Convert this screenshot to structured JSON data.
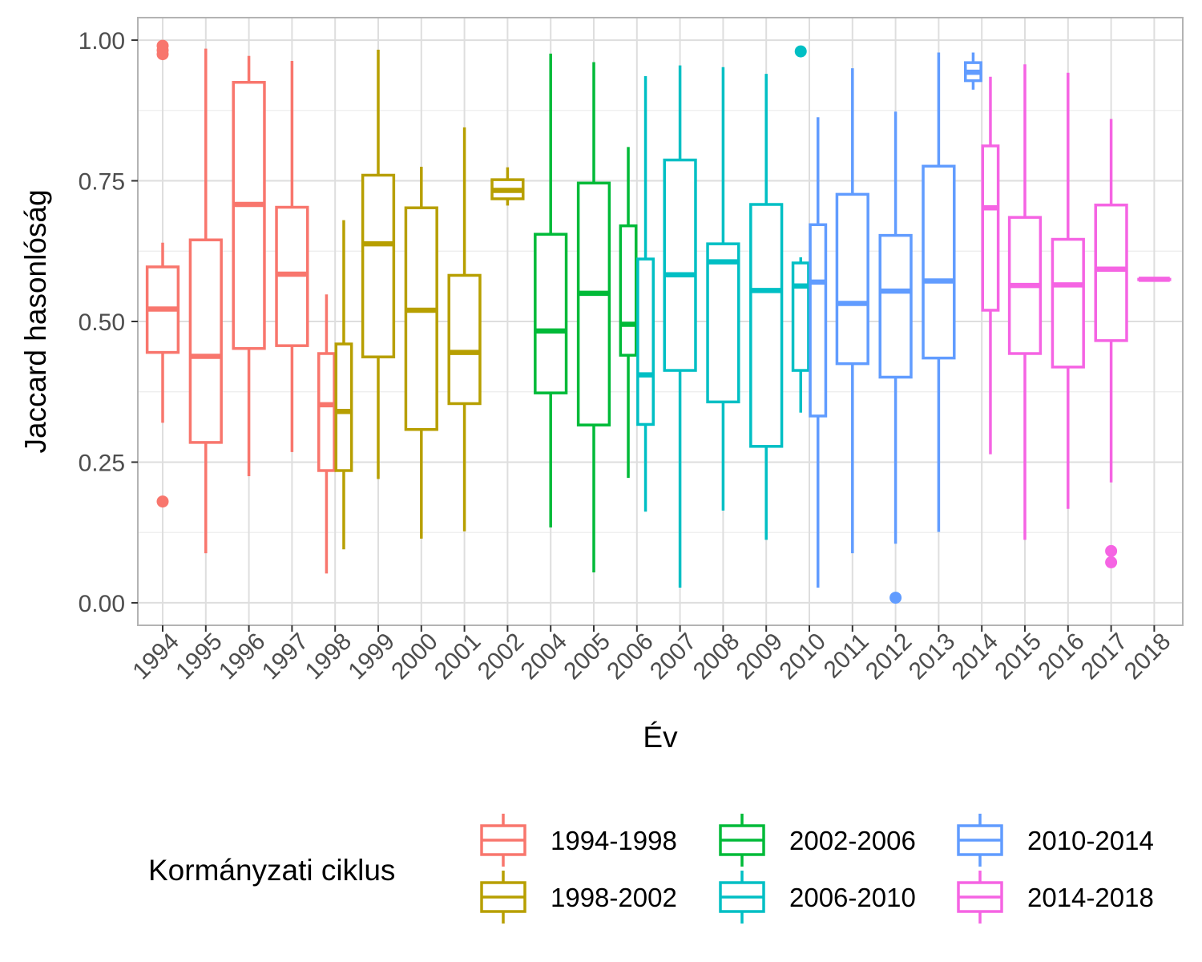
{
  "chart_data": {
    "type": "boxplot",
    "xlabel": "Év",
    "ylabel": "Jaccard hasonlóság",
    "ylim": [
      -0.04,
      1.04
    ],
    "yticks": [
      "0.00",
      "0.25",
      "0.50",
      "0.75",
      "1.00"
    ],
    "ytick_values": [
      0,
      0.25,
      0.5,
      0.75,
      1.0
    ],
    "grid": true,
    "legend": {
      "title": "Kormányzati ciklus",
      "placement": "bottom",
      "entries": [
        "1994-1998",
        "1998-2002",
        "2002-2006",
        "2006-2010",
        "2010-2014",
        "2014-2018"
      ]
    },
    "cycle_colors": {
      "1994-1998": "#F8766D",
      "1998-2002": "#B79F00",
      "2002-2006": "#00BA38",
      "2006-2010": "#00BFC4",
      "2010-2014": "#619CFF",
      "2014-2018": "#F564E3"
    },
    "categories": [
      "1994",
      "1995",
      "1996",
      "1997",
      "1998",
      "1999",
      "2000",
      "2001",
      "2002",
      "2004",
      "2005",
      "2006",
      "2007",
      "2008",
      "2009",
      "2010",
      "2011",
      "2012",
      "2013",
      "2014",
      "2015",
      "2016",
      "2017",
      "2018"
    ],
    "boxes": [
      {
        "year": "1994",
        "cycle": "1994-1998",
        "pos": 0,
        "width": 0.72,
        "min": 0.32,
        "q1": 0.445,
        "median": 0.522,
        "q3": 0.597,
        "max": 0.64,
        "outliers": [
          0.18,
          0.975,
          0.982,
          0.99
        ]
      },
      {
        "year": "1995",
        "cycle": "1994-1998",
        "pos": 1,
        "width": 0.72,
        "min": 0.088,
        "q1": 0.285,
        "median": 0.438,
        "q3": 0.645,
        "max": 0.985,
        "outliers": []
      },
      {
        "year": "1996",
        "cycle": "1994-1998",
        "pos": 2,
        "width": 0.72,
        "min": 0.225,
        "q1": 0.452,
        "median": 0.708,
        "q3": 0.925,
        "max": 0.972,
        "outliers": []
      },
      {
        "year": "1997",
        "cycle": "1994-1998",
        "pos": 3,
        "width": 0.72,
        "min": 0.268,
        "q1": 0.457,
        "median": 0.584,
        "q3": 0.703,
        "max": 0.963,
        "outliers": []
      },
      {
        "year": "1998",
        "cycle": "1994-1998",
        "pos": 3.8,
        "width": 0.36,
        "min": 0.052,
        "q1": 0.235,
        "median": 0.352,
        "q3": 0.443,
        "max": 0.548,
        "outliers": []
      },
      {
        "year": "1998",
        "cycle": "1998-2002",
        "pos": 4.2,
        "width": 0.36,
        "min": 0.095,
        "q1": 0.235,
        "median": 0.34,
        "q3": 0.46,
        "max": 0.68,
        "outliers": []
      },
      {
        "year": "1999",
        "cycle": "1998-2002",
        "pos": 5,
        "width": 0.72,
        "min": 0.22,
        "q1": 0.437,
        "median": 0.638,
        "q3": 0.76,
        "max": 0.983,
        "outliers": []
      },
      {
        "year": "2000",
        "cycle": "1998-2002",
        "pos": 6,
        "width": 0.72,
        "min": 0.114,
        "q1": 0.308,
        "median": 0.52,
        "q3": 0.702,
        "max": 0.775,
        "outliers": []
      },
      {
        "year": "2001",
        "cycle": "1998-2002",
        "pos": 7,
        "width": 0.72,
        "min": 0.127,
        "q1": 0.354,
        "median": 0.445,
        "q3": 0.582,
        "max": 0.845,
        "outliers": []
      },
      {
        "year": "2002",
        "cycle": "1998-2002",
        "pos": 8,
        "width": 0.72,
        "min": 0.706,
        "q1": 0.718,
        "median": 0.733,
        "q3": 0.752,
        "max": 0.774,
        "outliers": []
      },
      {
        "year": "2004",
        "cycle": "2002-2006",
        "pos": 9,
        "width": 0.72,
        "min": 0.134,
        "q1": 0.373,
        "median": 0.483,
        "q3": 0.655,
        "max": 0.976,
        "outliers": []
      },
      {
        "year": "2005",
        "cycle": "2002-2006",
        "pos": 10,
        "width": 0.72,
        "min": 0.054,
        "q1": 0.316,
        "median": 0.55,
        "q3": 0.746,
        "max": 0.961,
        "outliers": []
      },
      {
        "year": "2006",
        "cycle": "2002-2006",
        "pos": 10.8,
        "width": 0.36,
        "min": 0.222,
        "q1": 0.44,
        "median": 0.495,
        "q3": 0.67,
        "max": 0.81,
        "outliers": []
      },
      {
        "year": "2006",
        "cycle": "2006-2010",
        "pos": 11.2,
        "width": 0.36,
        "min": 0.162,
        "q1": 0.317,
        "median": 0.405,
        "q3": 0.611,
        "max": 0.936,
        "outliers": []
      },
      {
        "year": "2007",
        "cycle": "2006-2010",
        "pos": 12,
        "width": 0.72,
        "min": 0.027,
        "q1": 0.413,
        "median": 0.583,
        "q3": 0.787,
        "max": 0.955,
        "outliers": []
      },
      {
        "year": "2008",
        "cycle": "2006-2010",
        "pos": 13,
        "width": 0.72,
        "min": 0.164,
        "q1": 0.357,
        "median": 0.606,
        "q3": 0.638,
        "max": 0.952,
        "outliers": []
      },
      {
        "year": "2009",
        "cycle": "2006-2010",
        "pos": 14,
        "width": 0.72,
        "min": 0.112,
        "q1": 0.278,
        "median": 0.555,
        "q3": 0.708,
        "max": 0.94,
        "outliers": []
      },
      {
        "year": "2010",
        "cycle": "2006-2010",
        "pos": 14.8,
        "width": 0.36,
        "min": 0.338,
        "q1": 0.413,
        "median": 0.563,
        "q3": 0.604,
        "max": 0.614,
        "outliers": [
          0.98
        ]
      },
      {
        "year": "2010",
        "cycle": "2010-2014",
        "pos": 15.2,
        "width": 0.36,
        "min": 0.027,
        "q1": 0.332,
        "median": 0.57,
        "q3": 0.672,
        "max": 0.863,
        "outliers": []
      },
      {
        "year": "2011",
        "cycle": "2010-2014",
        "pos": 16,
        "width": 0.72,
        "min": 0.088,
        "q1": 0.425,
        "median": 0.532,
        "q3": 0.726,
        "max": 0.95,
        "outliers": []
      },
      {
        "year": "2012",
        "cycle": "2010-2014",
        "pos": 17,
        "width": 0.72,
        "min": 0.105,
        "q1": 0.401,
        "median": 0.554,
        "q3": 0.653,
        "max": 0.873,
        "outliers": [
          0.009
        ]
      },
      {
        "year": "2013",
        "cycle": "2010-2014",
        "pos": 18,
        "width": 0.72,
        "min": 0.126,
        "q1": 0.435,
        "median": 0.572,
        "q3": 0.776,
        "max": 0.978,
        "outliers": []
      },
      {
        "year": "2014",
        "cycle": "2010-2014",
        "pos": 18.8,
        "width": 0.36,
        "min": 0.912,
        "q1": 0.928,
        "median": 0.943,
        "q3": 0.96,
        "max": 0.978,
        "outliers": []
      },
      {
        "year": "2014",
        "cycle": "2014-2018",
        "pos": 19.2,
        "width": 0.36,
        "min": 0.264,
        "q1": 0.52,
        "median": 0.702,
        "q3": 0.812,
        "max": 0.935,
        "outliers": []
      },
      {
        "year": "2015",
        "cycle": "2014-2018",
        "pos": 20,
        "width": 0.72,
        "min": 0.112,
        "q1": 0.443,
        "median": 0.564,
        "q3": 0.685,
        "max": 0.957,
        "outliers": []
      },
      {
        "year": "2016",
        "cycle": "2014-2018",
        "pos": 21,
        "width": 0.72,
        "min": 0.167,
        "q1": 0.419,
        "median": 0.565,
        "q3": 0.646,
        "max": 0.942,
        "outliers": []
      },
      {
        "year": "2017",
        "cycle": "2014-2018",
        "pos": 22,
        "width": 0.72,
        "min": 0.214,
        "q1": 0.466,
        "median": 0.593,
        "q3": 0.707,
        "max": 0.86,
        "outliers": [
          0.072,
          0.092
        ]
      },
      {
        "year": "2018",
        "cycle": "2014-2018",
        "pos": 23,
        "width": 0.72,
        "min": 0.575,
        "q1": 0.575,
        "median": 0.575,
        "q3": 0.575,
        "max": 0.575,
        "outliers": []
      }
    ]
  }
}
